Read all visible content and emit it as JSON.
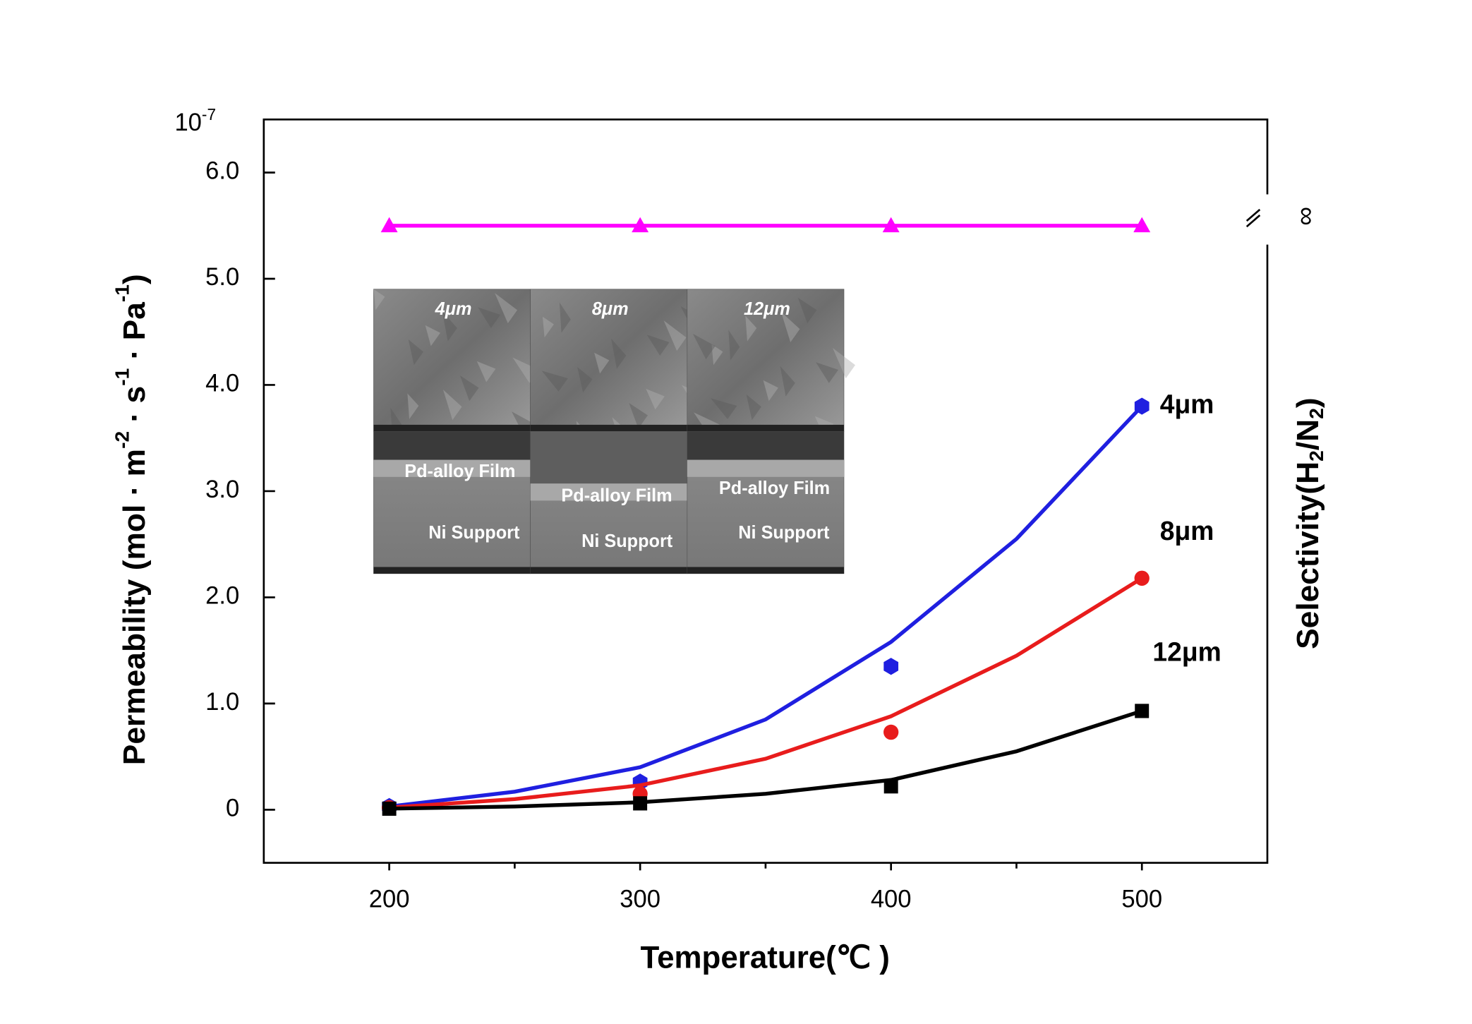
{
  "chart_data": {
    "type": "scatter",
    "xlabel": "Temperature(℃ )",
    "ylabel": [
      "Permeability (mol · m",
      "-2",
      " · s",
      "-1",
      " · Pa",
      "-1",
      ")"
    ],
    "y2label": [
      "Selectivity(H",
      "2",
      "/N",
      "2",
      ")"
    ],
    "y_multiplier": {
      "base": "10",
      "exponent": "-7"
    },
    "x": [
      200,
      300,
      400,
      500
    ],
    "fit_x": [
      200,
      250,
      300,
      350,
      400,
      450,
      500
    ],
    "xlim": [
      150,
      550
    ],
    "xticks": [
      200,
      300,
      400,
      500
    ],
    "xminorticks": [
      250,
      350,
      450
    ],
    "ylim": [
      -0.5,
      6.5
    ],
    "yticks": [
      0,
      {
        "value": 1,
        "label": "1.0"
      },
      {
        "value": 2,
        "label": "2.0"
      },
      {
        "value": 3,
        "label": "3.0"
      },
      {
        "value": 4,
        "label": "4.0"
      },
      {
        "value": 5,
        "label": "5.0"
      },
      {
        "value": 6,
        "label": "6.0"
      }
    ],
    "y2lim": [
      -0.5,
      6.5
    ],
    "y2ticks": [
      {
        "value": 5.5,
        "label": "∞"
      }
    ],
    "series": [
      {
        "name": "4μm",
        "color": "#1f1fe0",
        "marker": "hexagon",
        "values": [
          0.03,
          0.26,
          1.35,
          3.8
        ],
        "fit_values": [
          0.03,
          0.17,
          0.4,
          0.85,
          1.58,
          2.55,
          3.8
        ]
      },
      {
        "name": "8μm",
        "color": "#e81c1c",
        "marker": "circle",
        "values": [
          0.02,
          0.15,
          0.73,
          2.18
        ],
        "fit_values": [
          0.02,
          0.1,
          0.23,
          0.48,
          0.88,
          1.45,
          2.18
        ]
      },
      {
        "name": "12μm",
        "color": "#000000",
        "marker": "square",
        "values": [
          0.01,
          0.06,
          0.22,
          0.93
        ],
        "fit_values": [
          0.01,
          0.03,
          0.07,
          0.15,
          0.28,
          0.55,
          0.93
        ]
      },
      {
        "color": "#ff00ff",
        "marker": "triangle",
        "axis": "y2",
        "values": [
          5.5,
          5.5,
          5.5,
          5.5
        ]
      }
    ],
    "inset": {
      "panels": [
        {
          "top": "4μm",
          "film": "Pd-alloy  Film",
          "support": "Ni Support"
        },
        {
          "top": "8μm",
          "film": "Pd-alloy  Film",
          "support": "Ni Support"
        },
        {
          "top": "12μm",
          "film": "Pd-alloy Film",
          "support": "Ni Support"
        }
      ]
    }
  }
}
